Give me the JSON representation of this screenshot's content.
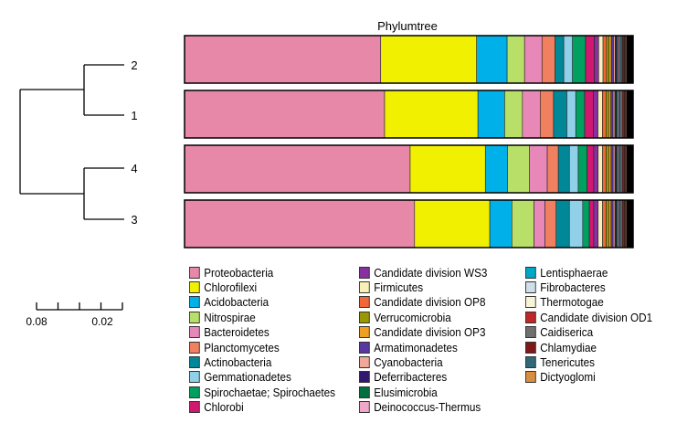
{
  "chart_data": {
    "type": "bar",
    "orientation": "horizontal",
    "stacked": true,
    "normalized": true,
    "title": "Phylumtree",
    "categories": [
      "2",
      "1",
      "4",
      "3"
    ],
    "scale_bar": {
      "labels": [
        "0.08",
        "0.02"
      ]
    },
    "legend_position": "bottom",
    "grid": false,
    "series": [
      {
        "name": "Proteobacteria",
        "color": "#E888A8",
        "values": [
          45,
          45,
          51,
          52
        ]
      },
      {
        "name": "Chlorofilexi",
        "color": "#F0F000",
        "values": [
          22,
          21,
          17,
          17
        ]
      },
      {
        "name": "Acidobacteria",
        "color": "#00B0E8",
        "values": [
          7,
          6,
          5,
          5
        ]
      },
      {
        "name": "Nitrospirae",
        "color": "#B8E068",
        "values": [
          4,
          4,
          5,
          5
        ]
      },
      {
        "name": "Bacteroidetes",
        "color": "#E888B8",
        "values": [
          4,
          4,
          4,
          2.5
        ]
      },
      {
        "name": "Planctomycetes",
        "color": "#F08060",
        "values": [
          3,
          3,
          2.5,
          2.5
        ]
      },
      {
        "name": "Actinobacteria",
        "color": "#008898",
        "values": [
          2,
          3,
          2.5,
          3
        ]
      },
      {
        "name": "Gemmationadetes",
        "color": "#90D0E8",
        "values": [
          2,
          2,
          2,
          3
        ]
      },
      {
        "name": "Spirochaetae; Spirochaetes",
        "color": "#00A060",
        "values": [
          3,
          2,
          2,
          1.5
        ]
      },
      {
        "name": "Chlorobi",
        "color": "#D01870",
        "values": [
          2,
          2,
          1.5,
          1
        ]
      },
      {
        "name": "Candidate division WS3",
        "color": "#8830A0",
        "values": [
          1,
          1,
          1,
          1
        ]
      },
      {
        "name": "Firmicutes",
        "color": "#F8F0B8",
        "values": [
          1,
          1,
          1,
          1
        ]
      },
      {
        "name": "Candidate division OP8",
        "color": "#F06838",
        "values": [
          0.8,
          0.8,
          0.8,
          0.8
        ]
      },
      {
        "name": "Verrucomicrobia",
        "color": "#989800",
        "values": [
          0.6,
          0.6,
          0.6,
          0.6
        ]
      },
      {
        "name": "Candidate division OP3",
        "color": "#F0A020",
        "values": [
          0.5,
          0.5,
          0.5,
          0.5
        ]
      },
      {
        "name": "Armatimonadetes",
        "color": "#5838A0",
        "values": [
          0.5,
          0.5,
          0.5,
          0.5
        ]
      },
      {
        "name": "Cyanobacteria",
        "color": "#F0A898",
        "values": [
          0.4,
          0.4,
          0.4,
          0.4
        ]
      },
      {
        "name": "Deferribacteres",
        "color": "#301870",
        "values": [
          0.3,
          0.3,
          0.3,
          0.3
        ]
      },
      {
        "name": "Elusimicrobia",
        "color": "#007040",
        "values": [
          0.3,
          0.3,
          0.3,
          0.3
        ]
      },
      {
        "name": "Deinococcus-Thermus",
        "color": "#F0A8C8",
        "values": [
          0.3,
          0.3,
          0.3,
          0.3
        ]
      },
      {
        "name": "Lentisphaerae",
        "color": "#00A8C8",
        "values": [
          0.3,
          0.3,
          0.3,
          0.3
        ]
      },
      {
        "name": "Fibrobacteres",
        "color": "#D0E0E8",
        "values": [
          0.2,
          0.2,
          0.2,
          0.2
        ]
      },
      {
        "name": "Thermotogae",
        "color": "#F8F4D8",
        "values": [
          0.2,
          0.2,
          0.2,
          0.2
        ]
      },
      {
        "name": "Candidate division OD1",
        "color": "#C02828",
        "values": [
          0.2,
          0.2,
          0.2,
          0.2
        ]
      },
      {
        "name": "Caidiserica",
        "color": "#707070",
        "values": [
          0.2,
          0.2,
          0.2,
          0.2
        ]
      },
      {
        "name": "Chlamydiae",
        "color": "#801818",
        "values": [
          0.2,
          0.2,
          0.2,
          0.2
        ]
      },
      {
        "name": "Tenericutes",
        "color": "#306878",
        "values": [
          0.2,
          0.2,
          0.2,
          0.2
        ]
      },
      {
        "name": "Dictyoglomi",
        "color": "#D89040",
        "values": [
          0.2,
          0.2,
          0.2,
          0.2
        ]
      },
      {
        "name": "",
        "color": "#000000",
        "values": [
          1.5,
          1.5,
          1.5,
          1.5
        ]
      }
    ]
  }
}
